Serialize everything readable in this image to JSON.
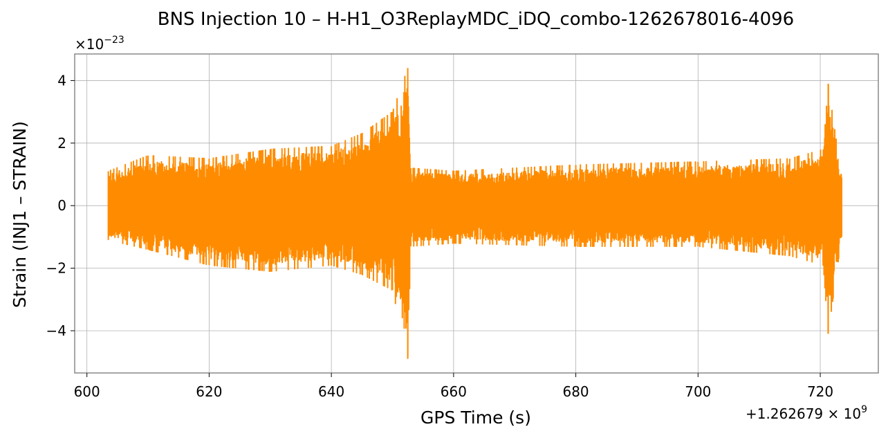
{
  "chart_data": {
    "type": "line",
    "title": "BNS Injection 10 – H-H1_O3ReplayMDC_iDQ_combo-1262678016-4096",
    "xlabel": "GPS Time (s)",
    "ylabel": "Strain (INJ1 – STRAIN)",
    "x_offset_text": "+1.262679 × 10",
    "x_offset_exp": "9",
    "y_scale_text": "×10",
    "y_scale_exp": "−23",
    "xlim": [
      598.0,
      729.5
    ],
    "ylim": [
      -5.35,
      4.85
    ],
    "x_ticks": [
      600,
      620,
      640,
      660,
      680,
      700,
      720
    ],
    "x_tick_labels": [
      "600",
      "620",
      "640",
      "660",
      "680",
      "700",
      "720"
    ],
    "y_ticks": [
      -4,
      -2,
      0,
      2,
      4
    ],
    "y_tick_labels": [
      "−4",
      "−2",
      "0",
      "2",
      "4"
    ],
    "grid": true,
    "line_color": "#ff8c00",
    "series": [
      {
        "x_range": [
          603.5,
          723.5
        ],
        "envelope": [
          {
            "x": 603.5,
            "max": 1.1,
            "min": -1.1
          },
          {
            "x": 610.0,
            "max": 1.6,
            "min": -1.4
          },
          {
            "x": 620.0,
            "max": 1.5,
            "min": -1.9
          },
          {
            "x": 630.0,
            "max": 1.8,
            "min": -2.1
          },
          {
            "x": 640.0,
            "max": 1.9,
            "min": -1.9
          },
          {
            "x": 645.0,
            "max": 2.3,
            "min": -2.2
          },
          {
            "x": 650.0,
            "max": 3.0,
            "min": -2.7
          },
          {
            "x": 652.5,
            "max": 4.4,
            "min": -4.9
          },
          {
            "x": 653.0,
            "max": 1.2,
            "min": -1.3
          },
          {
            "x": 660.0,
            "max": 1.1,
            "min": -1.2
          },
          {
            "x": 680.0,
            "max": 1.3,
            "min": -1.3
          },
          {
            "x": 700.0,
            "max": 1.4,
            "min": -1.3
          },
          {
            "x": 715.0,
            "max": 1.5,
            "min": -1.6
          },
          {
            "x": 720.5,
            "max": 1.8,
            "min": -1.9
          },
          {
            "x": 721.3,
            "max": 3.9,
            "min": -4.1
          },
          {
            "x": 723.5,
            "max": 0.9,
            "min": -1.0
          }
        ]
      }
    ]
  }
}
